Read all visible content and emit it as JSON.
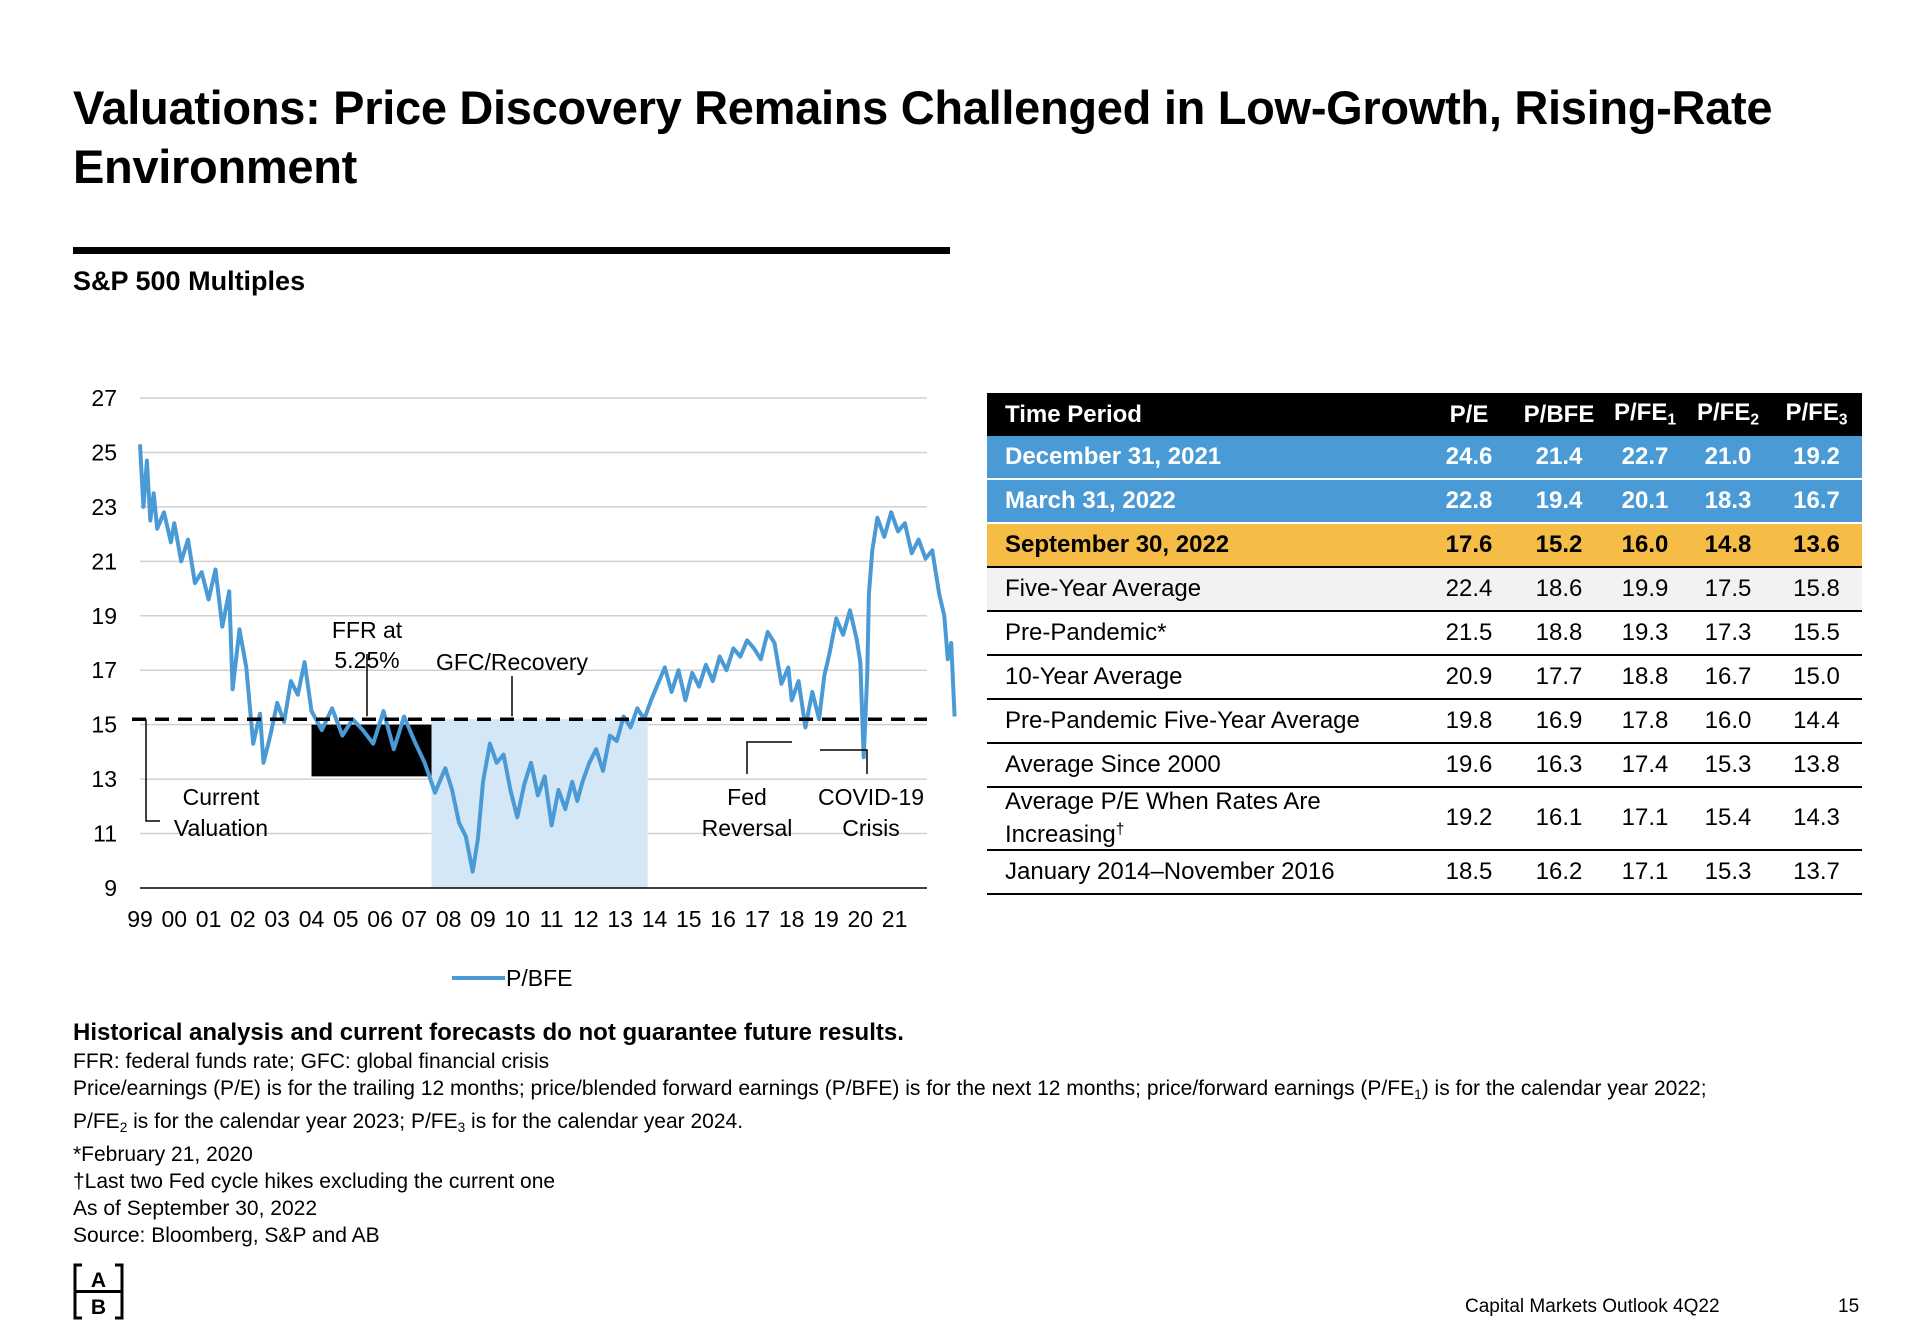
{
  "title": "Valuations: Price Discovery Remains Challenged in Low-Growth, Rising-Rate Environment",
  "subtitle": "S&P 500 Multiples",
  "chart_data": {
    "type": "line",
    "ylim": [
      9,
      27
    ],
    "yticks": [
      "27",
      "25",
      "23",
      "21",
      "19",
      "17",
      "15",
      "13",
      "11",
      "9"
    ],
    "xticks": [
      "99",
      "00",
      "01",
      "02",
      "03",
      "04",
      "05",
      "06",
      "07",
      "08",
      "09",
      "10",
      "11",
      "12",
      "13",
      "14",
      "15",
      "16",
      "17",
      "18",
      "19",
      "20",
      "21"
    ],
    "series": [
      {
        "name": "P/BFE",
        "color": "#4a9ad6",
        "x": [
          1999.0,
          1999.1,
          1999.2,
          1999.3,
          1999.4,
          1999.5,
          1999.7,
          1999.9,
          2000.0,
          2000.2,
          2000.4,
          2000.6,
          2000.8,
          2001.0,
          2001.2,
          2001.4,
          2001.6,
          2001.7,
          2001.9,
          2002.1,
          2002.3,
          2002.5,
          2002.6,
          2002.8,
          2003.0,
          2003.2,
          2003.4,
          2003.6,
          2003.8,
          2004.0,
          2004.3,
          2004.6,
          2004.9,
          2005.2,
          2005.5,
          2005.8,
          2006.1,
          2006.4,
          2006.7,
          2007.0,
          2007.3,
          2007.6,
          2007.9,
          2008.1,
          2008.3,
          2008.5,
          2008.7,
          2008.85,
          2009.0,
          2009.2,
          2009.4,
          2009.6,
          2009.8,
          2010.0,
          2010.2,
          2010.4,
          2010.6,
          2010.8,
          2011.0,
          2011.2,
          2011.4,
          2011.6,
          2011.75,
          2011.9,
          2012.1,
          2012.3,
          2012.5,
          2012.7,
          2012.9,
          2013.1,
          2013.3,
          2013.5,
          2013.7,
          2013.9,
          2014.1,
          2014.3,
          2014.5,
          2014.7,
          2014.9,
          2015.1,
          2015.3,
          2015.5,
          2015.7,
          2015.9,
          2016.1,
          2016.3,
          2016.5,
          2016.7,
          2016.9,
          2017.1,
          2017.3,
          2017.5,
          2017.7,
          2017.9,
          2018.0,
          2018.2,
          2018.4,
          2018.6,
          2018.8,
          2018.95,
          2019.1,
          2019.3,
          2019.5,
          2019.7,
          2019.9,
          2020.0,
          2020.1,
          2020.2,
          2020.25,
          2020.35,
          2020.5,
          2020.7,
          2020.9,
          2021.1,
          2021.3,
          2021.5,
          2021.7,
          2021.9,
          2022.1,
          2022.3,
          2022.45,
          2022.55,
          2022.65,
          2022.75
        ],
        "y": [
          25.3,
          23.0,
          24.7,
          22.5,
          23.5,
          22.2,
          22.8,
          21.7,
          22.4,
          21.0,
          21.8,
          20.2,
          20.6,
          19.6,
          20.7,
          18.6,
          19.9,
          16.3,
          18.5,
          17.1,
          14.3,
          15.4,
          13.6,
          14.6,
          15.8,
          15.1,
          16.6,
          16.1,
          17.3,
          15.5,
          14.8,
          15.6,
          14.6,
          15.2,
          14.8,
          14.3,
          15.5,
          14.1,
          15.3,
          14.4,
          13.6,
          12.5,
          13.4,
          12.6,
          11.4,
          10.9,
          9.6,
          10.8,
          12.9,
          14.3,
          13.6,
          13.9,
          12.6,
          11.6,
          12.8,
          13.6,
          12.4,
          13.1,
          11.3,
          12.6,
          11.9,
          12.9,
          12.2,
          12.9,
          13.6,
          14.1,
          13.3,
          14.6,
          14.4,
          15.3,
          14.9,
          15.6,
          15.2,
          15.9,
          16.5,
          17.1,
          16.2,
          17.0,
          15.9,
          16.9,
          16.4,
          17.2,
          16.6,
          17.5,
          17.0,
          17.8,
          17.5,
          18.1,
          17.8,
          17.4,
          18.4,
          18.0,
          16.5,
          17.1,
          15.9,
          16.6,
          14.9,
          16.2,
          15.2,
          16.8,
          17.6,
          18.9,
          18.3,
          19.2,
          18.1,
          17.3,
          13.8,
          16.8,
          19.8,
          21.4,
          22.6,
          21.9,
          22.8,
          22.1,
          22.4,
          21.3,
          21.8,
          21.1,
          21.4,
          19.8,
          19.0,
          17.4,
          18.0,
          15.3
        ]
      }
    ],
    "current_valuation": 15.2,
    "regions": [
      {
        "label": "FFR at 5.25%",
        "from": 2004.0,
        "to": 2007.5,
        "ymin": 13.1,
        "ymax": 15.0,
        "color": "#000000"
      },
      {
        "label": "GFC/Recovery",
        "from": 2007.5,
        "to": 2013.8,
        "ymin": 9.0,
        "ymax": 15.2,
        "color": "#d3e7f7"
      }
    ],
    "annotations": {
      "ffr_line1": "FFR at",
      "ffr_line2": "5.25%",
      "gfc": "GFC/Recovery",
      "current_line1": "Current",
      "current_line2": "Valuation",
      "fed_line1": "Fed",
      "fed_line2": "Reversal",
      "covid_line1": "COVID-19",
      "covid_line2": "Crisis"
    },
    "legend": "P/BFE"
  },
  "table": {
    "headers": [
      "Time Period",
      "P/E",
      "P/BFE",
      "P/FE",
      "P/FE",
      "P/FE"
    ],
    "header_subs": [
      "1",
      "2",
      "3"
    ],
    "rows": [
      {
        "label": "December 31, 2021",
        "values": [
          "24.6",
          "21.4",
          "22.7",
          "21.0",
          "19.2"
        ]
      },
      {
        "label": "March 31, 2022",
        "values": [
          "22.8",
          "19.4",
          "20.1",
          "18.3",
          "16.7"
        ]
      },
      {
        "label": "September 30, 2022",
        "values": [
          "17.6",
          "15.2",
          "16.0",
          "14.8",
          "13.6"
        ]
      },
      {
        "label": "Five-Year Average",
        "values": [
          "22.4",
          "18.6",
          "19.9",
          "17.5",
          "15.8"
        ]
      },
      {
        "label": "Pre-Pandemic*",
        "values": [
          "21.5",
          "18.8",
          "19.3",
          "17.3",
          "15.5"
        ]
      },
      {
        "label": "10-Year Average",
        "values": [
          "20.9",
          "17.7",
          "18.8",
          "16.7",
          "15.0"
        ]
      },
      {
        "label": "Pre-Pandemic Five-Year Average",
        "values": [
          "19.8",
          "16.9",
          "17.8",
          "16.0",
          "14.4"
        ]
      },
      {
        "label": "Average Since 2000",
        "values": [
          "19.6",
          "16.3",
          "17.4",
          "15.3",
          "13.8"
        ]
      },
      {
        "label": "Average P/E When Rates Are Increasing",
        "label_mark": "†",
        "values": [
          "19.2",
          "16.1",
          "17.1",
          "15.4",
          "14.3"
        ]
      },
      {
        "label": "January 2014–November 2016",
        "values": [
          "18.5",
          "16.2",
          "17.1",
          "15.3",
          "13.7"
        ]
      }
    ]
  },
  "notes": {
    "disclaimer": "Historical analysis and current forecasts do not guarantee future results.",
    "line1": "FFR: federal funds rate; GFC: global financial crisis",
    "line2_a": "Price/earnings (P/E) is for the trailing 12 months; price/blended forward earnings (P/BFE) is for the next 12 months; price/forward earnings (P/FE",
    "line2_sub": "1",
    "line2_b": ") is for the calendar year 2022;",
    "line3_a": "P/FE",
    "line3_sub1": "2",
    "line3_b": " is for the calendar year 2023; P/FE",
    "line3_sub2": "3",
    "line3_c": " is for the calendar year 2024.",
    "line4": "*February 21, 2020",
    "line5": "†Last two Fed cycle hikes excluding the current one",
    "line6": "As of September 30, 2022",
    "line7": "Source: Bloomberg, S&P and AB"
  },
  "logo": {
    "top": "A",
    "bottom": "B"
  },
  "footer": {
    "text": "Capital Markets Outlook 4Q22",
    "page": "15"
  }
}
